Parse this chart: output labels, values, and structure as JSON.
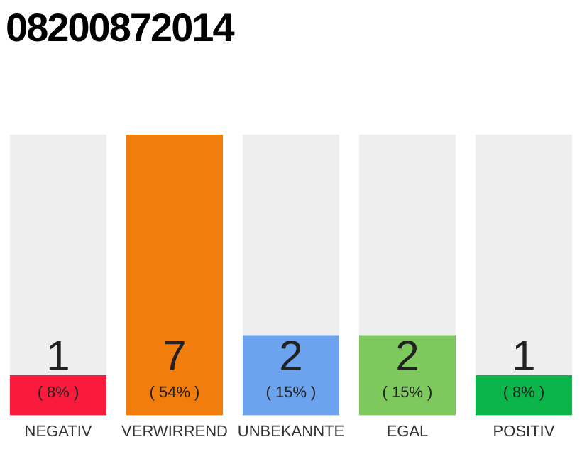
{
  "chart_data": {
    "type": "bar",
    "title": "08200872014",
    "categories": [
      "NEGATIV",
      "VERWIRREND",
      "UNBEKANNTE",
      "EGAL",
      "POSITIV"
    ],
    "values": [
      1,
      7,
      2,
      2,
      1
    ],
    "colors": [
      "#fa1b3c",
      "#f07d0c",
      "#6ba3ef",
      "#7ec95e",
      "#0bb54a"
    ],
    "data_labels": true,
    "annotations": [
      "( 8% )",
      "( 54% )",
      "( 15% )",
      "( 15% )",
      "( 8% )"
    ],
    "grid": false,
    "legend": false
  }
}
